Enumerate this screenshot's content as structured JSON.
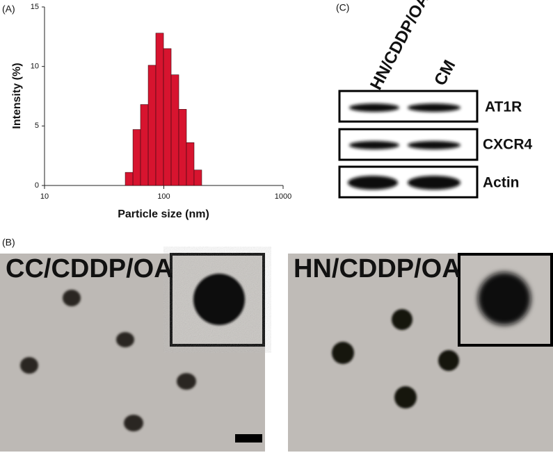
{
  "chart_data": {
    "type": "histogram",
    "panel_label": "(A)",
    "xlabel": "Particle size (nm)",
    "ylabel": "Intensity (%)",
    "bins": [
      47.5,
      55.1,
      63.8,
      74.0,
      85.7,
      99.4,
      115.2,
      133.5,
      154.7,
      179.3,
      207.8
    ],
    "values": [
      1.1,
      4.7,
      6.8,
      10.1,
      12.8,
      11.5,
      9.3,
      6.4,
      3.6,
      1.3
    ],
    "color": "#d7142f",
    "log_x": true,
    "xlim": [
      10,
      1000
    ],
    "xticks": [
      10,
      100,
      1000
    ],
    "ylim": [
      0,
      15
    ],
    "yticks": [
      0,
      5,
      10,
      15
    ]
  },
  "blot": {
    "panel_label": "(C)",
    "lanes": [
      "HN/CDDP/OA",
      "CM"
    ],
    "proteins": [
      "AT1R",
      "CXCR4",
      "Actin"
    ]
  },
  "tem": {
    "panel_label": "(B)",
    "images": [
      {
        "label": "CC/CDDP/OA"
      },
      {
        "label": "HN/CDDP/OA"
      }
    ]
  }
}
